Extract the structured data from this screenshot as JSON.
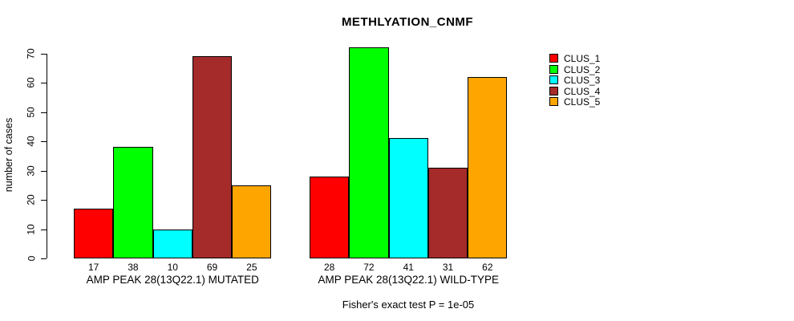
{
  "title": "METHLYATION_CNMF",
  "chart_data": {
    "type": "bar",
    "title": "METHLYATION_CNMF",
    "ylabel": "number of cases",
    "xlabel": "",
    "ylim": [
      0,
      70
    ],
    "ytick_step": 10,
    "yticks": [
      0,
      10,
      20,
      30,
      40,
      50,
      60,
      70
    ],
    "grid": false,
    "legend_position": "right",
    "bar_value_labels": true,
    "categories": [
      "AMP PEAK 28(13Q22.1) MUTATED",
      "AMP PEAK 28(13Q22.1) WILD-TYPE"
    ],
    "series": [
      {
        "name": "CLUS_1",
        "color": "#ff0000",
        "values": [
          17,
          28
        ]
      },
      {
        "name": "CLUS_2",
        "color": "#00ff00",
        "values": [
          38,
          72
        ]
      },
      {
        "name": "CLUS_3",
        "color": "#00ffff",
        "values": [
          10,
          41
        ]
      },
      {
        "name": "CLUS_4",
        "color": "#a52a2a",
        "values": [
          69,
          31
        ]
      },
      {
        "name": "CLUS_5",
        "color": "#ffa500",
        "values": [
          25,
          62
        ]
      }
    ],
    "annotation": "Fisher's exact test P = 1e-05"
  }
}
